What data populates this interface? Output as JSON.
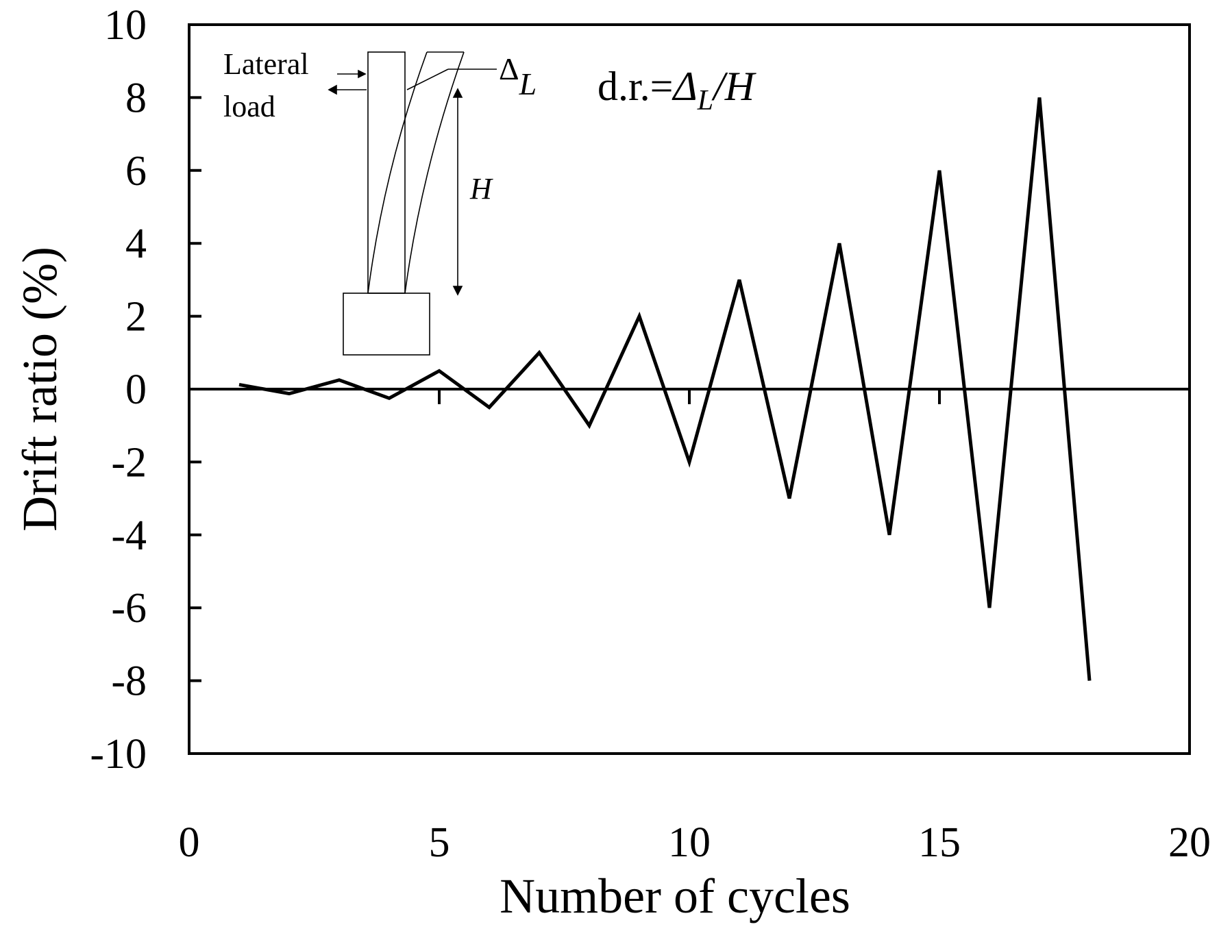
{
  "chart_data": {
    "type": "line",
    "title": "",
    "xlabel": "Number of cycles",
    "ylabel": "Drift ratio (%)",
    "xlim": [
      0,
      20
    ],
    "ylim": [
      -10,
      10
    ],
    "x_ticks": [
      "0",
      "5",
      "10",
      "15",
      "20"
    ],
    "y_ticks": [
      "10",
      "8",
      "6",
      "4",
      "2",
      "0",
      "-2",
      "-4",
      "-6",
      "-8",
      "-10"
    ],
    "grid": false,
    "legend": "none",
    "series": [
      {
        "x": [
          1,
          2,
          3,
          4,
          5,
          6,
          7,
          8,
          9,
          10,
          11,
          12,
          13,
          14,
          15,
          16,
          17,
          18
        ],
        "y": [
          0.125,
          -0.125,
          0.25,
          -0.25,
          0.5,
          -0.5,
          1,
          -1,
          2,
          -2,
          3,
          -3,
          4,
          -4,
          6,
          -6,
          8,
          -8
        ]
      }
    ],
    "annotations": {
      "lateral_line1": "Lateral",
      "lateral_line2": "load",
      "delta": "Δ",
      "delta_sub": "L",
      "height": "H",
      "formula_prefix": "d.r.=",
      "formula_delta": "Δ",
      "formula_sub": "L",
      "formula_suffix": "/H"
    },
    "colors": {
      "line": "#000000",
      "axes": "#000000",
      "background": "#ffffff"
    }
  }
}
